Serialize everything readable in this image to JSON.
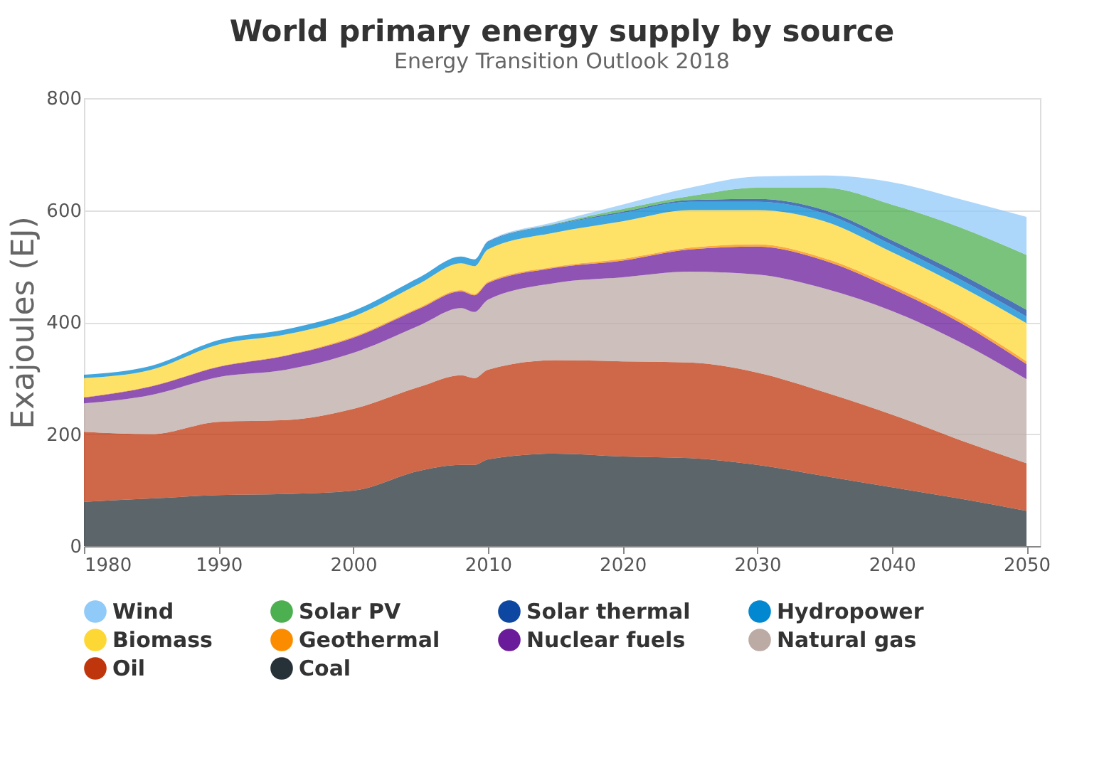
{
  "chart_data": {
    "type": "area",
    "stacked": true,
    "title": "World primary energy supply by source",
    "subtitle": "Energy Transition Outlook 2018",
    "ylabel": "Exajoules (EJ)",
    "x": [
      1980,
      1985,
      1990,
      1995,
      2000,
      2005,
      2008,
      2009,
      2010,
      2015,
      2020,
      2025,
      2030,
      2035,
      2040,
      2045,
      2050
    ],
    "xlim": [
      1980,
      2051
    ],
    "xticks": [
      1980,
      1990,
      2000,
      2010,
      2020,
      2030,
      2040,
      2050
    ],
    "ylim": [
      0,
      800
    ],
    "yticks": [
      0,
      200,
      400,
      600,
      800
    ],
    "grid": "y",
    "legend": "bottom",
    "series": [
      {
        "name": "Coal",
        "color": "#263238",
        "values": [
          79,
          85,
          91,
          93,
          99,
          135,
          145,
          145,
          155,
          165,
          160,
          157,
          145,
          125,
          105,
          85,
          63
        ]
      },
      {
        "name": "Oil",
        "color": "#bf360c",
        "values": [
          125,
          115,
          131,
          132,
          146,
          150,
          160,
          155,
          160,
          167,
          170,
          171,
          165,
          150,
          130,
          105,
          85
        ]
      },
      {
        "name": "Natural gas",
        "color": "#bcaaa4",
        "values": [
          51,
          70,
          80,
          90,
          100,
          110,
          120,
          118,
          125,
          138,
          150,
          162,
          175,
          185,
          185,
          175,
          150
        ]
      },
      {
        "name": "Nuclear fuels",
        "color": "#6a1b9a",
        "values": [
          10,
          15,
          18,
          25,
          27,
          30,
          30,
          30,
          30,
          27,
          30,
          40,
          50,
          50,
          40,
          35,
          27
        ]
      },
      {
        "name": "Geothermal",
        "color": "#fb8c00",
        "values": [
          1,
          1,
          1,
          1,
          2,
          2,
          2,
          2,
          2,
          2,
          3,
          3,
          4,
          4,
          5,
          5,
          5
        ]
      },
      {
        "name": "Biomass",
        "color": "#fdd835",
        "values": [
          34,
          29,
          39,
          37,
          36,
          43,
          48,
          50,
          58,
          61,
          67,
          67,
          61,
          66,
          60,
          60,
          68
        ]
      },
      {
        "name": "Hydropower",
        "color": "#0288d1",
        "values": [
          6,
          7,
          8,
          9,
          10,
          11,
          12,
          12,
          13,
          14,
          15,
          15,
          15,
          14,
          13,
          12,
          12
        ]
      },
      {
        "name": "Solar thermal",
        "color": "#0d47a1",
        "values": [
          0,
          0,
          0,
          0,
          0,
          0,
          0,
          0,
          1,
          1,
          2,
          3,
          5,
          6,
          8,
          10,
          12
        ]
      },
      {
        "name": "Solar PV",
        "color": "#4caf50",
        "values": [
          0,
          0,
          0,
          0,
          0,
          0,
          0,
          0,
          0,
          1,
          5,
          7,
          20,
          40,
          64,
          83,
          98
        ]
      },
      {
        "name": "Wind",
        "color": "#90caf9",
        "values": [
          0,
          0,
          0,
          0,
          0,
          0,
          0,
          0,
          1,
          3,
          8,
          15,
          20,
          22,
          40,
          50,
          68
        ]
      }
    ]
  }
}
